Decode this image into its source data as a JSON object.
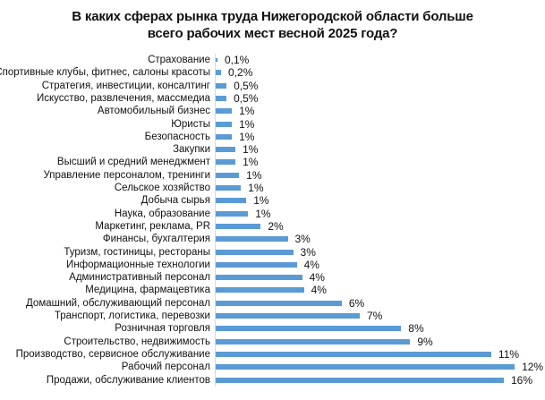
{
  "chart_data": {
    "type": "bar",
    "orientation": "horizontal",
    "title": "В каких сферах рынка труда  Нижегородской области больше всего рабочих  мест весной 2025 года?",
    "title_lines": [
      "В каких сферах рынка труда  Нижегородской области больше",
      "всего рабочих  мест весной 2025 года?"
    ],
    "xlabel": "",
    "ylabel": "",
    "grid": false,
    "legend": null,
    "bar_color": "#5b9bd5",
    "unit": "%",
    "categories": [
      "Страхование",
      "Спортивные клубы, фитнес, салоны красоты",
      "Стратегия, инвестиции, консалтинг",
      "Искусство, развлечения, массмедиа",
      "Автомобильный бизнес",
      "Юристы",
      "Безопасность",
      "Закупки",
      "Высший и средний менеджмент",
      "Управление персоналом, тренинги",
      "Сельское хозяйство",
      "Добыча сырья",
      "Наука, образование",
      "Маркетинг, реклама, PR",
      "Финансы, бухгалтерия",
      "Туризм, гостиницы, рестораны",
      "Информационные технологии",
      "Административный персонал",
      "Медицина, фармацевтика",
      "Домашний, обслуживающий персонал",
      "Транспорт, логистика, перевозки",
      "Розничная торговля",
      "Строительство, недвижимость",
      "Производство, сервисное обслуживание",
      "Рабочий персонал",
      "Продажи, обслуживание клиентов"
    ],
    "values": [
      0.1,
      0.2,
      0.5,
      0.5,
      1,
      1,
      1,
      1,
      1,
      1,
      1,
      1,
      1,
      2,
      3,
      3,
      4,
      4,
      4,
      6,
      7,
      8,
      9,
      11,
      12,
      16
    ],
    "bar_lengths_estimated": [
      0.1,
      0.3,
      0.6,
      0.6,
      0.9,
      0.9,
      0.9,
      1.1,
      1.1,
      1.3,
      1.4,
      1.7,
      1.8,
      2.5,
      4.0,
      4.3,
      4.5,
      4.8,
      4.9,
      7.0,
      8.0,
      10.3,
      10.8,
      15.3,
      16.6,
      16.0
    ],
    "value_labels": [
      "0,1%",
      "0,2%",
      "0,5%",
      "0,5%",
      "1%",
      "1%",
      "1%",
      "1%",
      "1%",
      "1%",
      "1%",
      "1%",
      "1%",
      "2%",
      "3%",
      "3%",
      "4%",
      "4%",
      "4%",
      "6%",
      "7%",
      "8%",
      "9%",
      "11%",
      "12%",
      "16%"
    ],
    "xlim": [
      0,
      16
    ]
  }
}
